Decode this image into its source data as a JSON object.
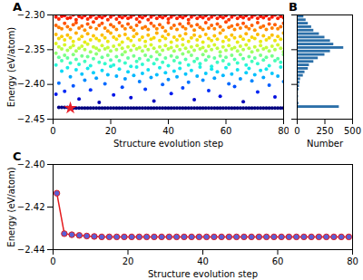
{
  "chart_data": [
    {
      "type": "scatter",
      "title": "A",
      "x_label": "Structure evolution step",
      "y_label": "Energy (eV/atom)",
      "color": "jet",
      "xlim": [
        0,
        80
      ],
      "xticks": [
        0,
        20,
        40,
        60,
        80
      ],
      "ylim": [
        -2.45,
        -2.3
      ],
      "yticks": [
        {
          "value": -2.3,
          "label": "−2.30"
        },
        {
          "value": -2.35,
          "label": "−2.35"
        },
        {
          "value": -2.4,
          "label": "−2.40"
        },
        {
          "value": -2.45,
          "label": "−2.45"
        }
      ],
      "x": [
        1,
        2,
        3,
        4,
        5,
        6,
        7,
        8,
        9,
        10,
        11,
        12,
        13,
        14,
        15,
        16,
        17,
        18,
        19,
        20,
        21,
        22,
        23,
        24,
        25,
        26,
        27,
        28,
        29,
        30,
        31,
        32,
        33,
        34,
        35,
        36,
        37,
        38,
        39,
        40,
        41,
        42,
        43,
        44,
        45,
        46,
        47,
        48,
        49,
        50,
        51,
        52,
        53,
        54,
        55,
        56,
        57,
        58,
        59,
        60,
        61,
        62,
        63,
        64,
        65,
        66,
        67,
        68,
        69,
        70,
        71,
        72,
        73,
        74,
        75,
        76,
        77,
        78,
        79,
        80
      ],
      "values": [
        [
          -2.414,
          -2.372,
          -2.355,
          -2.341,
          -2.328,
          -2.315,
          -2.303
        ],
        [
          -2.433,
          -2.398,
          -2.361,
          -2.346,
          -2.334,
          -2.318,
          -2.306
        ],
        [
          -2.433,
          -2.381,
          -2.366,
          -2.349,
          -2.331,
          -2.32,
          -2.302
        ],
        [
          -2.433,
          -2.41,
          -2.358,
          -2.343,
          -2.336,
          -2.312,
          -2.301
        ],
        [
          -2.433,
          -2.376,
          -2.362,
          -2.351,
          -2.329,
          -2.317,
          -2.305
        ],
        [
          -2.434,
          -2.389,
          -2.369,
          -2.347,
          -2.333,
          -2.321,
          -2.304
        ],
        [
          -2.434,
          -2.402,
          -2.357,
          -2.344,
          -2.338,
          -2.314,
          -2.3
        ],
        [
          -2.434,
          -2.379,
          -2.364,
          -2.352,
          -2.326,
          -2.311,
          -2.307
        ],
        [
          -2.434,
          -2.421,
          -2.371,
          -2.348,
          -2.335,
          -2.319,
          -2.302
        ],
        [
          -2.434,
          -2.385,
          -2.359,
          -2.345,
          -2.331,
          -2.316,
          -2.304
        ],
        [
          -2.434,
          -2.394,
          -2.367,
          -2.35,
          -2.339,
          -2.322,
          -2.301
        ],
        [
          -2.434,
          -2.377,
          -2.36,
          -2.342,
          -2.327,
          -2.313,
          -2.306
        ],
        [
          -2.434,
          -2.408,
          -2.373,
          -2.353,
          -2.336,
          -2.318,
          -2.303
        ],
        [
          -2.434,
          -2.383,
          -2.363,
          -2.346,
          -2.33,
          -2.31,
          -2.3
        ],
        [
          -2.434,
          -2.391,
          -2.356,
          -2.348,
          -2.334,
          -2.32,
          -2.305
        ],
        [
          -2.434,
          -2.426,
          -2.368,
          -2.351,
          -2.337,
          -2.315,
          -2.302
        ],
        [
          -2.434,
          -2.38,
          -2.361,
          -2.344,
          -2.329,
          -2.312,
          -2.304
        ],
        [
          -2.434,
          -2.399,
          -2.37,
          -2.349,
          -2.333,
          -2.319,
          -2.301
        ],
        [
          -2.434,
          -2.386,
          -2.358,
          -2.347,
          -2.338,
          -2.323,
          -2.307
        ],
        [
          -2.434,
          -2.374,
          -2.365,
          -2.352,
          -2.326,
          -2.314,
          -2.303
        ],
        [
          -2.434,
          -2.415,
          -2.372,
          -2.345,
          -2.332,
          -2.317,
          -2.3
        ],
        [
          -2.434,
          -2.388,
          -2.36,
          -2.35,
          -2.335,
          -2.321,
          -2.306
        ],
        [
          -2.434,
          -2.378,
          -2.366,
          -2.343,
          -2.33,
          -2.311,
          -2.302
        ],
        [
          -2.434,
          -2.404,
          -2.357,
          -2.348,
          -2.339,
          -2.316,
          -2.304
        ],
        [
          -2.434,
          -2.392,
          -2.369,
          -2.353,
          -2.328,
          -2.32,
          -2.301
        ],
        [
          -2.434,
          -2.382,
          -2.362,
          -2.346,
          -2.334,
          -2.313,
          -2.305
        ],
        [
          -2.434,
          -2.419,
          -2.374,
          -2.351,
          -2.337,
          -2.318,
          -2.303
        ],
        [
          -2.434,
          -2.387,
          -2.359,
          -2.344,
          -2.331,
          -2.322,
          -2.3
        ],
        [
          -2.434,
          -2.375,
          -2.367,
          -2.349,
          -2.327,
          -2.315,
          -2.306
        ],
        [
          -2.434,
          -2.396,
          -2.363,
          -2.347,
          -2.336,
          -2.31,
          -2.302
        ],
        [
          -2.434,
          -2.384,
          -2.371,
          -2.352,
          -2.332,
          -2.319,
          -2.304
        ],
        [
          -2.434,
          -2.407,
          -2.358,
          -2.345,
          -2.338,
          -2.317,
          -2.301
        ],
        [
          -2.434,
          -2.379,
          -2.365,
          -2.35,
          -2.329,
          -2.321,
          -2.307
        ],
        [
          -2.434,
          -2.39,
          -2.36,
          -2.343,
          -2.335,
          -2.312,
          -2.303
        ],
        [
          -2.434,
          -2.424,
          -2.37,
          -2.348,
          -2.333,
          -2.316,
          -2.3
        ],
        [
          -2.434,
          -2.386,
          -2.364,
          -2.353,
          -2.326,
          -2.32,
          -2.305
        ],
        [
          -2.434,
          -2.376,
          -2.357,
          -2.346,
          -2.337,
          -2.314,
          -2.302
        ],
        [
          -2.434,
          -2.4,
          -2.368,
          -2.351,
          -2.331,
          -2.318,
          -2.304
        ],
        [
          -2.434,
          -2.383,
          -2.362,
          -2.344,
          -2.334,
          -2.323,
          -2.301
        ],
        [
          -2.434,
          -2.393,
          -2.373,
          -2.349,
          -2.328,
          -2.311,
          -2.306
        ],
        [
          -2.434,
          -2.413,
          -2.359,
          -2.347,
          -2.339,
          -2.319,
          -2.303
        ],
        [
          -2.434,
          -2.381,
          -2.366,
          -2.352,
          -2.332,
          -2.315,
          -2.3
        ],
        [
          -2.434,
          -2.389,
          -2.361,
          -2.345,
          -2.336,
          -2.321,
          -2.305
        ],
        [
          -2.434,
          -2.377,
          -2.369,
          -2.35,
          -2.33,
          -2.313,
          -2.302
        ],
        [
          -2.434,
          -2.405,
          -2.356,
          -2.343,
          -2.335,
          -2.317,
          -2.304
        ],
        [
          -2.434,
          -2.385,
          -2.364,
          -2.348,
          -2.327,
          -2.32,
          -2.301
        ],
        [
          -2.434,
          -2.397,
          -2.372,
          -2.353,
          -2.338,
          -2.312,
          -2.307
        ],
        [
          -2.434,
          -2.38,
          -2.358,
          -2.346,
          -2.333,
          -2.316,
          -2.303
        ],
        [
          -2.434,
          -2.422,
          -2.367,
          -2.351,
          -2.329,
          -2.322,
          -2.3
        ],
        [
          -2.434,
          -2.388,
          -2.363,
          -2.344,
          -2.336,
          -2.314,
          -2.305
        ],
        [
          -2.434,
          -2.375,
          -2.37,
          -2.349,
          -2.331,
          -2.318,
          -2.302
        ],
        [
          -2.434,
          -2.394,
          -2.357,
          -2.347,
          -2.339,
          -2.321,
          -2.304
        ],
        [
          -2.434,
          -2.384,
          -2.365,
          -2.352,
          -2.328,
          -2.311,
          -2.301
        ],
        [
          -2.434,
          -2.409,
          -2.36,
          -2.345,
          -2.334,
          -2.319,
          -2.306
        ],
        [
          -2.434,
          -2.378,
          -2.374,
          -2.35,
          -2.337,
          -2.315,
          -2.303
        ],
        [
          -2.434,
          -2.391,
          -2.362,
          -2.343,
          -2.33,
          -2.32,
          -2.3
        ],
        [
          -2.434,
          -2.382,
          -2.368,
          -2.348,
          -2.335,
          -2.313,
          -2.305
        ],
        [
          -2.434,
          -2.417,
          -2.359,
          -2.353,
          -2.326,
          -2.317,
          -2.302
        ],
        [
          -2.434,
          -2.387,
          -2.366,
          -2.346,
          -2.338,
          -2.322,
          -2.304
        ],
        [
          -2.434,
          -2.376,
          -2.361,
          -2.351,
          -2.332,
          -2.31,
          -2.301
        ],
        [
          -2.434,
          -2.399,
          -2.371,
          -2.344,
          -2.336,
          -2.318,
          -2.307
        ],
        [
          -2.434,
          -2.385,
          -2.358,
          -2.349,
          -2.329,
          -2.316,
          -2.303
        ],
        [
          -2.434,
          -2.403,
          -2.364,
          -2.347,
          -2.333,
          -2.321,
          -2.3
        ],
        [
          -2.434,
          -2.379,
          -2.369,
          -2.352,
          -2.339,
          -2.314,
          -2.305
        ],
        [
          -2.434,
          -2.392,
          -2.357,
          -2.345,
          -2.331,
          -2.319,
          -2.302
        ],
        [
          -2.434,
          -2.425,
          -2.363,
          -2.35,
          -2.335,
          -2.312,
          -2.304
        ],
        [
          -2.434,
          -2.383,
          -2.372,
          -2.343,
          -2.327,
          -2.317,
          -2.301
        ],
        [
          -2.434,
          -2.377,
          -2.36,
          -2.348,
          -2.337,
          -2.32,
          -2.306
        ],
        [
          -2.434,
          -2.395,
          -2.367,
          -2.353,
          -2.332,
          -2.315,
          -2.303
        ],
        [
          -2.434,
          -2.386,
          -2.362,
          -2.346,
          -2.334,
          -2.322,
          -2.3
        ],
        [
          -2.434,
          -2.411,
          -2.37,
          -2.351,
          -2.328,
          -2.311,
          -2.305
        ],
        [
          -2.434,
          -2.38,
          -2.358,
          -2.344,
          -2.338,
          -2.318,
          -2.302
        ],
        [
          -2.434,
          -2.39,
          -2.365,
          -2.349,
          -2.33,
          -2.316,
          -2.304
        ],
        [
          -2.434,
          -2.378,
          -2.361,
          -2.347,
          -2.336,
          -2.321,
          -2.301
        ],
        [
          -2.434,
          -2.401,
          -2.373,
          -2.352,
          -2.333,
          -2.313,
          -2.306
        ],
        [
          -2.434,
          -2.384,
          -2.359,
          -2.345,
          -2.329,
          -2.319,
          -2.303
        ],
        [
          -2.434,
          -2.418,
          -2.366,
          -2.35,
          -2.337,
          -2.314,
          -2.3
        ],
        [
          -2.434,
          -2.388,
          -2.363,
          -2.343,
          -2.331,
          -2.32,
          -2.305
        ],
        [
          -2.434,
          -2.375,
          -2.368,
          -2.348,
          -2.335,
          -2.317,
          -2.302
        ],
        [
          -2.434,
          -2.396,
          -2.357,
          -2.353,
          -2.326,
          -2.312,
          -2.304
        ]
      ],
      "highlight": {
        "x": 6,
        "y": -2.434,
        "color": "#e8202a",
        "marker": "star"
      }
    },
    {
      "type": "histogram",
      "title": "B",
      "orientation": "horizontal",
      "x_label": "Number",
      "color": "#2b6fa8",
      "tick_labels": "x",
      "xlim": [
        0,
        500
      ],
      "xticks": [
        0,
        250,
        500
      ],
      "ylim": [
        -2.45,
        -2.3
      ],
      "yticks": [
        -2.3,
        -2.35,
        -2.4,
        -2.45
      ],
      "bins": [
        -2.45,
        -2.445,
        -2.44,
        -2.435,
        -2.43,
        -2.425,
        -2.42,
        -2.415,
        -2.41,
        -2.405,
        -2.4,
        -2.395,
        -2.39,
        -2.385,
        -2.38,
        -2.375,
        -2.37,
        -2.365,
        -2.36,
        -2.355,
        -2.35,
        -2.345,
        -2.34,
        -2.335,
        -2.33,
        -2.325,
        -2.32,
        -2.315,
        -2.31,
        -2.305,
        -2.3
      ],
      "counts": [
        0,
        0,
        0,
        380,
        15,
        10,
        12,
        10,
        15,
        20,
        25,
        30,
        55,
        70,
        100,
        110,
        150,
        190,
        250,
        300,
        420,
        330,
        300,
        250,
        200,
        150,
        130,
        100,
        80,
        60
      ]
    },
    {
      "type": "line",
      "title": "C",
      "x_label": "Structure evolution step",
      "y_label": "Energy (eV/atom)",
      "xlim": [
        0,
        80
      ],
      "xticks": [
        0,
        20,
        40,
        60,
        80
      ],
      "ylim": [
        -2.44,
        -2.4
      ],
      "yticks": [
        {
          "value": -2.4,
          "label": "−2.40"
        },
        {
          "value": -2.42,
          "label": "−2.42"
        },
        {
          "value": -2.44,
          "label": "−2.44"
        }
      ],
      "x": [
        1,
        3,
        5,
        7,
        9,
        11,
        13,
        15,
        17,
        19,
        21,
        23,
        25,
        27,
        29,
        31,
        33,
        35,
        37,
        39,
        41,
        43,
        45,
        47,
        49,
        51,
        53,
        55,
        57,
        59,
        61,
        63,
        65,
        67,
        69,
        71,
        73,
        75,
        77,
        79
      ],
      "series": [
        {
          "color": "#e41a1c",
          "marker": "circle",
          "values": [
            -2.4135,
            -2.4325,
            -2.433,
            -2.4333,
            -2.4336,
            -2.4338,
            -2.434,
            -2.434,
            -2.434,
            -2.434,
            -2.434,
            -2.434,
            -2.434,
            -2.434,
            -2.434,
            -2.434,
            -2.434,
            -2.434,
            -2.434,
            -2.434,
            -2.434,
            -2.434,
            -2.434,
            -2.434,
            -2.434,
            -2.434,
            -2.434,
            -2.434,
            -2.434,
            -2.434,
            -2.434,
            -2.434,
            -2.434,
            -2.434,
            -2.434,
            -2.434,
            -2.434,
            -2.434,
            -2.434,
            -2.434
          ]
        }
      ]
    }
  ]
}
